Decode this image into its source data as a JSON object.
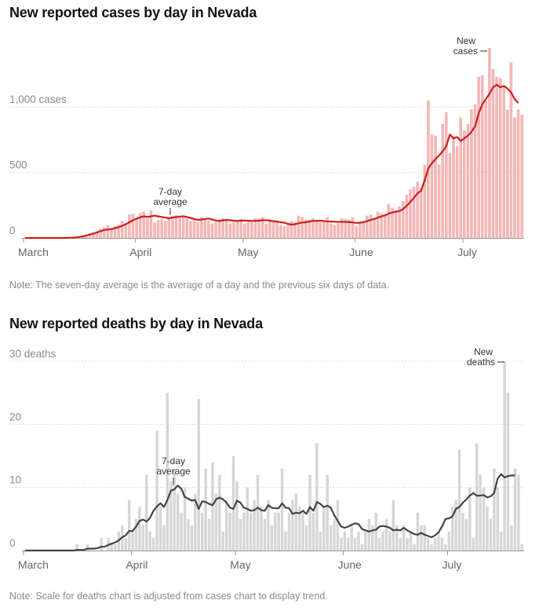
{
  "chart_data": [
    {
      "type": "bar",
      "title": "New reported cases by day in Nevada",
      "note": "Note: The seven-day average is the average of a day and the previous six days of data.",
      "x_start": "2020-03-01",
      "month_labels": [
        {
          "label": "March",
          "day": 0
        },
        {
          "label": "April",
          "day": 31
        },
        {
          "label": "May",
          "day": 61
        },
        {
          "label": "June",
          "day": 92
        },
        {
          "label": "July",
          "day": 122
        }
      ],
      "y_ticks": [
        {
          "value": 0,
          "label": "0"
        },
        {
          "value": 500,
          "label": "500"
        },
        {
          "value": 1000,
          "label": "1,000 cases"
        }
      ],
      "ylim": [
        0,
        1450
      ],
      "grid": true,
      "bar_annotation": [
        "New",
        "cases"
      ],
      "avg_annotation": [
        "7-day",
        "average"
      ],
      "bar_color": "#f4b6b6",
      "line_color": "#cc1f1f",
      "series": [
        {
          "name": "New cases",
          "values": [
            0,
            0,
            0,
            0,
            0,
            0,
            0,
            0,
            0,
            0,
            0,
            0,
            0,
            2,
            5,
            10,
            15,
            25,
            35,
            45,
            55,
            70,
            80,
            95,
            70,
            90,
            100,
            130,
            110,
            180,
            185,
            150,
            190,
            200,
            150,
            210,
            120,
            135,
            145,
            130,
            160,
            170,
            175,
            155,
            165,
            150,
            130,
            145,
            120,
            160,
            140,
            130,
            110,
            120,
            140,
            150,
            140,
            110,
            120,
            135,
            145,
            110,
            130,
            120,
            150,
            150,
            160,
            110,
            140,
            120,
            130,
            100,
            90,
            110,
            130,
            120,
            170,
            160,
            140,
            140,
            150,
            130,
            120,
            130,
            160,
            110,
            100,
            110,
            150,
            145,
            140,
            160,
            90,
            120,
            130,
            170,
            180,
            150,
            200,
            190,
            170,
            260,
            230,
            210,
            240,
            280,
            330,
            370,
            390,
            430,
            380,
            560,
            1050,
            790,
            780,
            560,
            870,
            960,
            650,
            780,
            700,
            920,
            820,
            870,
            980,
            1020,
            1230,
            1240,
            1050,
            1450,
            1290,
            1230,
            1220,
            1150,
            980,
            1340,
            920,
            980,
            940
          ]
        },
        {
          "name": "7-day average",
          "values": [
            0,
            0,
            0,
            0,
            0,
            0,
            0,
            0,
            0,
            0,
            0,
            0,
            1,
            2,
            4,
            7,
            12,
            18,
            26,
            33,
            42,
            52,
            60,
            65,
            68,
            75,
            82,
            93,
            105,
            120,
            135,
            148,
            158,
            165,
            160,
            165,
            170,
            165,
            160,
            155,
            150,
            155,
            160,
            163,
            165,
            160,
            153,
            145,
            138,
            140,
            145,
            148,
            140,
            132,
            130,
            135,
            138,
            135,
            132,
            130,
            132,
            133,
            132,
            130,
            131,
            132,
            135,
            136,
            132,
            128,
            125,
            120,
            116,
            108,
            102,
            105,
            112,
            118,
            120,
            125,
            130,
            131,
            132,
            130,
            126,
            125,
            124,
            122,
            124,
            123,
            122,
            118,
            115,
            117,
            120,
            128,
            138,
            145,
            155,
            165,
            173,
            185,
            195,
            200,
            205,
            220,
            245,
            275,
            305,
            340,
            360,
            440,
            530,
            570,
            600,
            630,
            660,
            700,
            790,
            760,
            770,
            740,
            760,
            780,
            810,
            850,
            950,
            1020,
            1060,
            1100,
            1150,
            1170,
            1150,
            1160,
            1140,
            1110,
            1060,
            1030
          ]
        }
      ]
    },
    {
      "type": "bar",
      "title": "New reported deaths by day in Nevada",
      "note": "Note: Scale for deaths chart is adjusted from cases chart to display trend.",
      "x_start": "2020-03-01",
      "month_labels": [
        {
          "label": "March",
          "day": 0
        },
        {
          "label": "April",
          "day": 31
        },
        {
          "label": "May",
          "day": 61
        },
        {
          "label": "June",
          "day": 92
        },
        {
          "label": "July",
          "day": 122
        }
      ],
      "y_ticks": [
        {
          "value": 0,
          "label": "0"
        },
        {
          "value": 10,
          "label": "10"
        },
        {
          "value": 20,
          "label": "20"
        },
        {
          "value": 30,
          "label": "30 deaths"
        }
      ],
      "ylim": [
        0,
        31
      ],
      "grid": true,
      "bar_annotation": [
        "New",
        "deaths"
      ],
      "avg_annotation": [
        "7-day",
        "average"
      ],
      "bar_color": "#d6d6d6",
      "line_color": "#444444",
      "series": [
        {
          "name": "New deaths",
          "values": [
            0,
            0,
            0,
            0,
            0,
            0,
            0,
            0,
            0,
            0,
            0,
            0,
            0,
            0,
            0,
            1,
            0,
            0,
            1,
            0,
            0,
            0,
            2,
            0,
            2,
            1,
            1,
            3,
            4,
            2,
            8,
            3,
            5,
            7,
            4,
            12,
            3,
            2,
            19,
            7,
            4,
            25,
            11,
            13,
            9,
            6,
            10,
            5,
            4,
            9,
            24,
            6,
            13,
            5,
            14,
            9,
            12,
            3,
            8,
            6,
            15,
            11,
            5,
            6,
            10,
            6,
            8,
            12,
            7,
            5,
            8,
            4,
            6,
            6,
            13,
            3,
            6,
            8,
            9,
            7,
            6,
            4,
            12,
            6,
            17,
            3,
            7,
            12,
            4,
            5,
            8,
            2,
            3,
            2,
            4,
            2,
            3,
            1,
            3,
            5,
            4,
            6,
            2,
            3,
            5,
            3,
            8,
            4,
            2,
            4,
            2,
            3,
            1,
            6,
            4,
            4,
            2,
            1,
            2,
            3,
            2,
            1,
            3,
            7,
            8,
            16,
            6,
            5,
            10,
            2,
            17,
            12,
            10,
            7,
            5,
            13,
            10,
            3,
            30,
            25,
            4,
            13,
            12,
            1
          ]
        },
        {
          "name": "7-day average",
          "values": [
            0,
            0,
            0,
            0,
            0,
            0,
            0,
            0,
            0,
            0,
            0,
            0,
            0,
            0,
            0,
            0.1,
            0.1,
            0.1,
            0.3,
            0.3,
            0.3,
            0.4,
            0.6,
            0.6,
            0.9,
            1.1,
            1.3,
            1.6,
            2.1,
            2.4,
            3.1,
            3.1,
            3.8,
            4.7,
            4.9,
            4.6,
            5.2,
            6.3,
            7,
            7.5,
            6.9,
            8,
            9.5,
            9.7,
            10.3,
            9.8,
            8.5,
            8.2,
            7.9,
            8,
            6.6,
            7.8,
            7.7,
            7.4,
            7.2,
            8.1,
            8.4,
            8.1,
            7.6,
            6.8,
            6.6,
            7.9,
            7.6,
            6.8,
            6.6,
            6.3,
            6.4,
            6.8,
            6.4,
            6.3,
            7.2,
            6.8,
            6.7,
            6.7,
            7.5,
            6.8,
            6.7,
            5.8,
            6,
            5.9,
            6.3,
            5.8,
            6.9,
            6.3,
            7.7,
            7.4,
            6.9,
            7.1,
            6.8,
            5.6,
            4.7,
            3.8,
            3.6,
            3.8,
            4.1,
            4.3,
            4.2,
            3.4,
            3.2,
            3,
            3.2,
            3.3,
            3.8,
            3.9,
            3.8,
            3.6,
            3.2,
            3.3,
            3.2,
            3.6,
            3.2,
            2.9,
            2.6,
            2.5,
            2.8,
            2.5,
            2.3,
            2.1,
            2.4,
            2.9,
            3.8,
            5,
            5.1,
            5.4,
            6.6,
            6.9,
            7.6,
            8.1,
            8.7,
            9.1,
            8.7,
            8.7,
            8.8,
            8.4,
            8.6,
            9.1,
            11.4,
            12.1,
            11.6,
            11.8,
            11.9,
            11.9
          ]
        }
      ]
    }
  ]
}
